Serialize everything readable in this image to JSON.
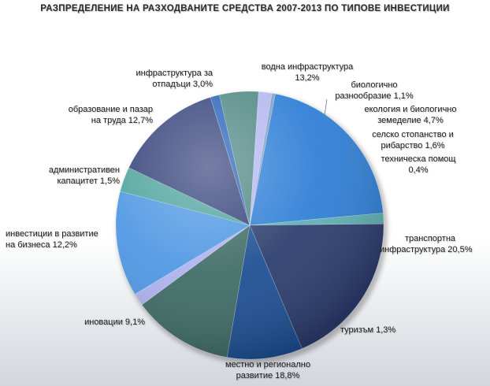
{
  "chart_data": {
    "type": "pie",
    "title": "РАЗПРЕДЕЛЕНИЕ НА РАЗХОДВАНИТЕ СРЕДСТВА 2007-2013  ПО ТИПОВЕ ИНВЕСТИЦИИ",
    "slices": [
      {
        "label": "транспортна инфраструктура 20,5%",
        "line1": "транспортна",
        "line2": "инфраструктура 20,5%",
        "value": 20.5,
        "color": "#2f7fd6"
      },
      {
        "label": "туризъм 1,3%",
        "line1": "туризъм 1,3%",
        "line2": "",
        "value": 1.3,
        "color": "#5fb0b4"
      },
      {
        "label": "местно и регионално развитие 18,8%",
        "line1": "местно и регионално",
        "line2": "развитие 18,8%",
        "value": 18.8,
        "color": "#2c3d6e"
      },
      {
        "label": "иновации 9,1%",
        "line1": "иновации 9,1%",
        "line2": "",
        "value": 9.1,
        "color": "#1d4f93"
      },
      {
        "label": "инвестиции в развитие на бизнеса 12,2%",
        "line1": "инвестиции в развитие",
        "line2": "на бизнеса 12,2%",
        "value": 12.2,
        "color": "#3f6b66"
      },
      {
        "label": "административен капацитет 1,5%",
        "line1": "административен",
        "line2": "капацитет 1,5%",
        "value": 1.5,
        "color": "#aeb2ee"
      },
      {
        "label": "образование и пазар на труда 12,7%",
        "line1": "образование и пазар",
        "line2": "на труда 12,7%",
        "value": 12.7,
        "color": "#4f97e3"
      },
      {
        "label": "инфраструктура за отпадъци 3,0%",
        "line1": "инфраструктура за",
        "line2": "отпадъци 3,0%",
        "value": 3.0,
        "color": "#4fa39d"
      },
      {
        "label": "водна инфраструктура 13,2%",
        "line1": "водна инфраструктура",
        "line2": "13,2%",
        "value": 13.2,
        "color": "#34427a"
      },
      {
        "label": "биологично разнообразие 1,1%",
        "line1": "биологично",
        "line2": "разнообразие 1,1%",
        "value": 1.1,
        "color": "#2a62b8"
      },
      {
        "label": "екология и биологично земеделие 4,7%",
        "line1": "екология и биологично",
        "line2": "земеделие 4,7%",
        "value": 4.7,
        "color": "#4f8783"
      },
      {
        "label": "селско стопанство и рибарство 1,6%",
        "line1": "селско стопанство и",
        "line2": "рибарство 1,6%",
        "value": 1.6,
        "color": "#b4b7f0"
      },
      {
        "label": "техническа помощ 0,4%",
        "line1": "техническа помощ",
        "line2": "0,4%",
        "value": 0.4,
        "color": "#7fa0c8"
      }
    ]
  }
}
